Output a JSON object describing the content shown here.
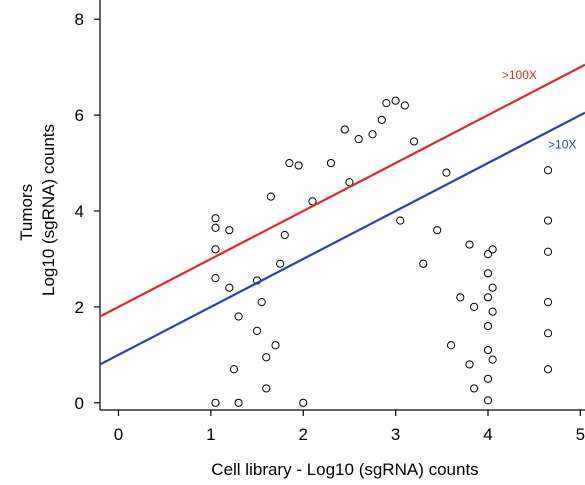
{
  "chart_data": {
    "type": "scatter",
    "xlabel": "Cell library - Log10 (sgRNA) counts",
    "ylabel_lines": [
      "Tumors",
      "Log10 (sgRNA) counts"
    ],
    "xlim": [
      -0.2,
      5.05
    ],
    "ylim": [
      -0.15,
      8.4
    ],
    "x_ticks": [
      0,
      1,
      2,
      3,
      4,
      5
    ],
    "y_ticks": [
      0,
      2,
      4,
      6,
      8
    ],
    "x_tick_labels": [
      "0",
      "1",
      "2",
      "3",
      "4",
      "5"
    ],
    "y_tick_labels": [
      "0",
      "2",
      "4",
      "6",
      "8"
    ],
    "grid": false,
    "marker": {
      "shape": "open-circle",
      "color": "#000000"
    },
    "lines": [
      {
        "label": ">100X",
        "intercept": 2.0,
        "slope": 1.0,
        "color": "#d62b2b"
      },
      {
        "label": ">10X",
        "intercept": 1.0,
        "slope": 1.0,
        "color": "#2b3fa8"
      }
    ],
    "annotations": [
      {
        "text": ">100X",
        "x": 4.15,
        "y": 6.75,
        "color": "#d62b2b"
      },
      {
        "text": ">10X",
        "x": 4.65,
        "y": 5.3,
        "color": "#2b3fa8"
      }
    ],
    "points": [
      [
        1.05,
        3.85
      ],
      [
        1.05,
        3.65
      ],
      [
        1.05,
        3.2
      ],
      [
        1.05,
        2.6
      ],
      [
        1.05,
        0.0
      ],
      [
        1.2,
        3.6
      ],
      [
        1.2,
        2.4
      ],
      [
        1.25,
        0.7
      ],
      [
        1.3,
        0.0
      ],
      [
        1.3,
        1.8
      ],
      [
        1.5,
        1.5
      ],
      [
        1.55,
        2.1
      ],
      [
        1.6,
        0.3
      ],
      [
        1.65,
        4.3
      ],
      [
        1.7,
        1.2
      ],
      [
        1.8,
        3.5
      ],
      [
        1.85,
        5.0
      ],
      [
        1.95,
        4.95
      ],
      [
        2.0,
        0.0
      ],
      [
        2.1,
        4.2
      ],
      [
        2.3,
        5.0
      ],
      [
        2.45,
        5.7
      ],
      [
        2.6,
        5.5
      ],
      [
        2.75,
        5.6
      ],
      [
        2.85,
        5.9
      ],
      [
        2.9,
        6.25
      ],
      [
        3.0,
        6.3
      ],
      [
        3.1,
        6.2
      ],
      [
        3.2,
        5.45
      ],
      [
        3.05,
        3.8
      ],
      [
        3.3,
        2.9
      ],
      [
        3.45,
        3.6
      ],
      [
        3.55,
        4.8
      ],
      [
        3.6,
        1.2
      ],
      [
        3.7,
        2.2
      ],
      [
        3.8,
        0.8
      ],
      [
        3.8,
        3.3
      ],
      [
        3.85,
        2.0
      ],
      [
        3.85,
        0.3
      ],
      [
        4.0,
        3.1
      ],
      [
        4.0,
        2.7
      ],
      [
        4.0,
        2.2
      ],
      [
        4.0,
        1.6
      ],
      [
        4.0,
        1.1
      ],
      [
        4.0,
        0.5
      ],
      [
        4.0,
        0.05
      ],
      [
        4.05,
        3.2
      ],
      [
        4.05,
        2.4
      ],
      [
        4.05,
        1.9
      ],
      [
        4.05,
        0.9
      ],
      [
        4.65,
        4.85
      ],
      [
        4.65,
        3.8
      ],
      [
        4.65,
        3.15
      ],
      [
        4.65,
        2.1
      ],
      [
        4.65,
        1.45
      ],
      [
        4.65,
        0.7
      ],
      [
        1.5,
        2.55
      ],
      [
        1.6,
        0.95
      ],
      [
        1.75,
        2.9
      ],
      [
        2.5,
        4.6
      ]
    ]
  }
}
